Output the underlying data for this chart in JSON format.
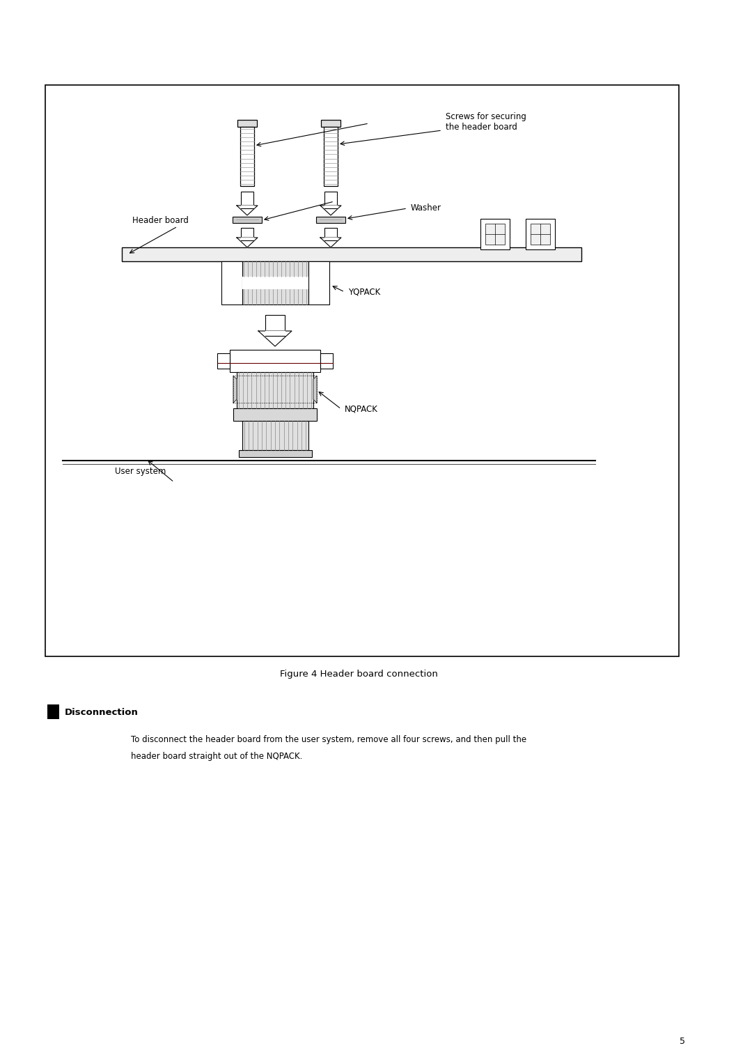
{
  "fig_width": 10.8,
  "fig_height": 15.27,
  "bg_color": "#ffffff",
  "figure_caption": "Figure 4 Header board connection",
  "disconnection_title": "Disconnection",
  "disconnection_text_line1": "To disconnect the header board from the user system, remove all four screws, and then pull the",
  "disconnection_text_line2": "header board straight out of the NQPACK.",
  "labels": {
    "screws": "Screws for securing\nthe header board",
    "header_board": "Header board",
    "washer": "Washer",
    "yqpack": "YQPACK",
    "user_system": "User system",
    "nqpack": "NQPACK"
  },
  "lc": "#000000",
  "fc": "#ffffff",
  "gray1": "#e8e8e8",
  "gray2": "#d0d0d0",
  "rib_color": "#aaaaaa",
  "dark_red": "#6B0000"
}
